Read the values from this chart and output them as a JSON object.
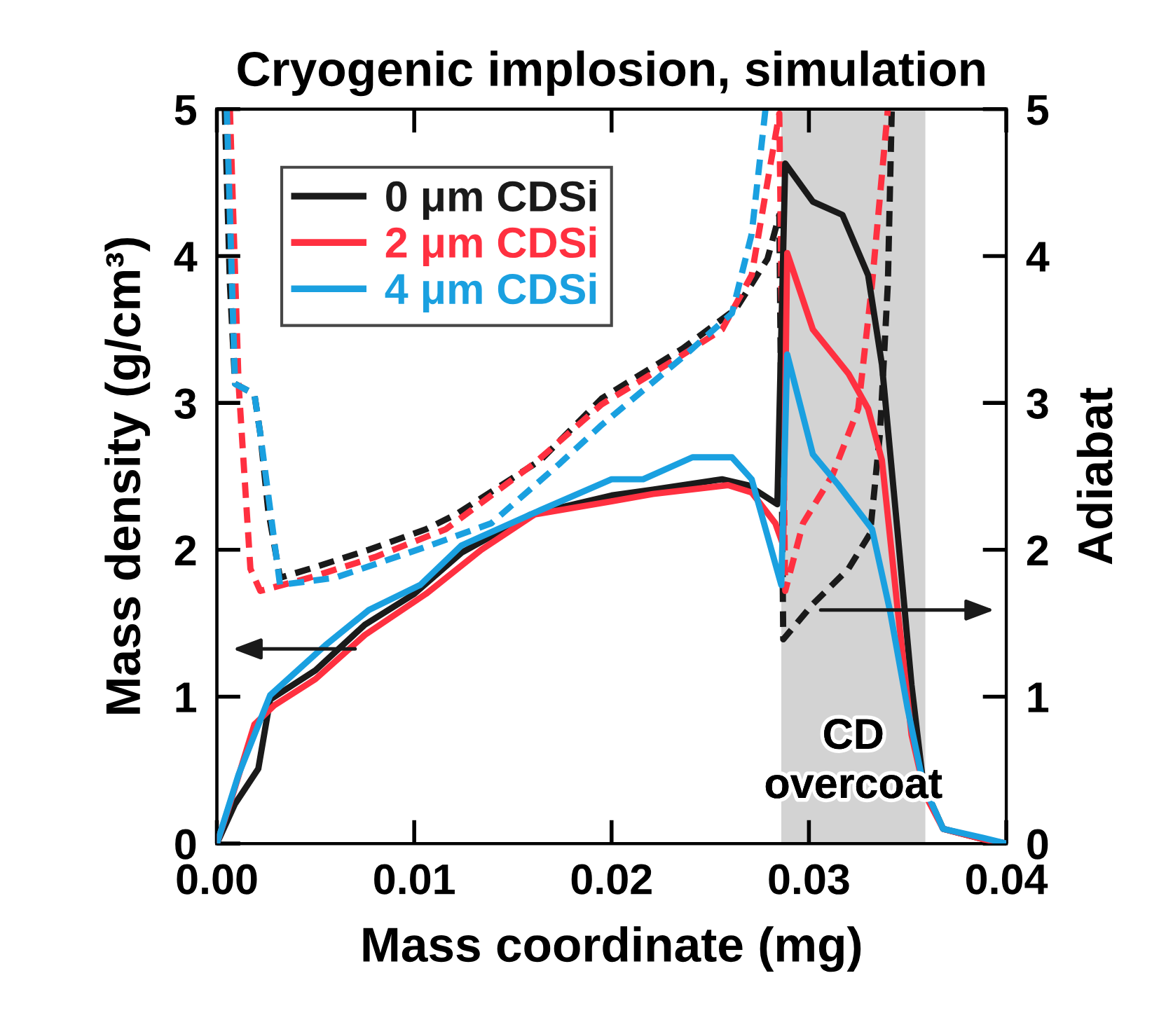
{
  "chart_data": {
    "type": "line",
    "title": "Cryogenic implosion, simulation",
    "xlabel": "Mass coordinate (mg)",
    "ylabel": "Mass density (g/cm³)",
    "y2label": "Adiabat",
    "xlim": [
      0,
      0.04
    ],
    "xticks": [
      {
        "value": 0,
        "label": "0.00"
      },
      0.01,
      0.02,
      0.03,
      0.04
    ],
    "ylim": [
      0,
      5
    ],
    "yticks": [
      0,
      1,
      2,
      3,
      4,
      5
    ],
    "y2lim": [
      0,
      5
    ],
    "y2ticks": [
      0,
      1,
      2,
      3,
      4,
      5
    ],
    "grid": false,
    "legend": "top left",
    "marker": "none",
    "bands": [
      {
        "axis": "x",
        "from": 0.0286,
        "to": 0.0359,
        "label": "CD\novercoat",
        "color": "#d3d3d3"
      }
    ],
    "series": [
      {
        "name": "0 μm CDSi",
        "color": "#1a1a1a",
        "line_style": "solid",
        "x": [
          0,
          0.00092,
          0.0021,
          0.0027,
          0.005,
          0.0075,
          0.01,
          0.0124,
          0.0159,
          0.02,
          0.0221,
          0.0256,
          0.0269,
          0.0284,
          0.0288,
          0.0302,
          0.0317,
          0.033,
          0.0337,
          0.0345,
          0.0352,
          0.0358,
          0.0368,
          0.0388,
          0.04
        ],
        "values": [
          0,
          0.27,
          0.51,
          0.98,
          1.18,
          1.49,
          1.7,
          1.98,
          2.24,
          2.37,
          2.41,
          2.48,
          2.44,
          2.31,
          4.63,
          4.37,
          4.28,
          3.87,
          3.26,
          2.11,
          1.08,
          0.4,
          0.1,
          0.03,
          0
        ]
      },
      {
        "name": "2 μm CDSi",
        "color": "#ff3040",
        "line_style": "solid",
        "x": [
          0,
          0.00066,
          0.0019,
          0.0029,
          0.005,
          0.0075,
          0.0106,
          0.0134,
          0.0161,
          0.02,
          0.0221,
          0.0259,
          0.0271,
          0.0283,
          0.0287,
          0.0289,
          0.0302,
          0.032,
          0.033,
          0.0337,
          0.0345,
          0.0352,
          0.0359,
          0.0368,
          0.0388,
          0.04
        ],
        "values": [
          0,
          0.27,
          0.81,
          0.94,
          1.12,
          1.42,
          1.7,
          2.0,
          2.24,
          2.33,
          2.38,
          2.44,
          2.39,
          2.18,
          2.03,
          4.02,
          3.5,
          3.2,
          2.96,
          2.61,
          1.59,
          0.74,
          0.33,
          0.1,
          0.03,
          0
        ]
      },
      {
        "name": "4 μm CDSi",
        "color": "#1aa0e0",
        "line_style": "solid",
        "x": [
          0,
          0.0011,
          0.0027,
          0.0055,
          0.0077,
          0.0103,
          0.0124,
          0.0164,
          0.02,
          0.0216,
          0.0241,
          0.0261,
          0.0271,
          0.0286,
          0.0289,
          0.0302,
          0.0315,
          0.0332,
          0.0341,
          0.035,
          0.0358,
          0.0368,
          0.0388,
          0.04
        ],
        "values": [
          0,
          0.47,
          1.01,
          1.35,
          1.59,
          1.76,
          2.03,
          2.27,
          2.48,
          2.48,
          2.63,
          2.63,
          2.48,
          1.76,
          3.33,
          2.65,
          2.44,
          2.14,
          1.59,
          0.92,
          0.4,
          0.1,
          0.04,
          0
        ]
      },
      {
        "color": "#1a1a1a",
        "axis": "y2",
        "line_style": "dashed",
        "x": [
          0.0004,
          0.00066,
          0.00092,
          0.0019,
          0.0022,
          0.0026,
          0.0032,
          0.0047,
          0.0077,
          0.0106,
          0.0121,
          0.0164,
          0.0195,
          0.0236,
          0.0263,
          0.0279,
          0.0285,
          0.0287,
          0.0302,
          0.032,
          0.0331,
          0.0336,
          0.034,
          0.0342
        ],
        "values": [
          5,
          3.81,
          3.13,
          3.06,
          2.79,
          2.27,
          1.81,
          1.87,
          2.0,
          2.14,
          2.24,
          2.61,
          3.03,
          3.37,
          3.64,
          3.98,
          4.28,
          1.39,
          1.63,
          1.87,
          2.11,
          2.79,
          3.81,
          5
        ]
      },
      {
        "color": "#ff3040",
        "axis": "y2",
        "line_style": "dashed",
        "x": [
          0.00066,
          0.0011,
          0.0017,
          0.0022,
          0.0047,
          0.008,
          0.0116,
          0.0161,
          0.0195,
          0.0234,
          0.0256,
          0.0271,
          0.0281,
          0.0285,
          0.0288,
          0.0297,
          0.0312,
          0.0325,
          0.0332,
          0.034
        ],
        "values": [
          5,
          3.13,
          1.87,
          1.72,
          1.81,
          1.95,
          2.14,
          2.59,
          2.99,
          3.31,
          3.5,
          3.87,
          4.66,
          4.97,
          1.72,
          2.18,
          2.51,
          2.96,
          3.81,
          5
        ]
      },
      {
        "color": "#1aa0e0",
        "axis": "y2",
        "line_style": "dashed",
        "x": [
          0.0005,
          0.00092,
          0.0019,
          0.0022,
          0.0032,
          0.006,
          0.0106,
          0.0139,
          0.0174,
          0.0195,
          0.0236,
          0.0261,
          0.0271,
          0.0278
        ],
        "values": [
          5,
          3.13,
          3.06,
          2.79,
          1.76,
          1.81,
          2.02,
          2.18,
          2.59,
          2.85,
          3.31,
          3.61,
          4.15,
          5
        ]
      }
    ]
  }
}
